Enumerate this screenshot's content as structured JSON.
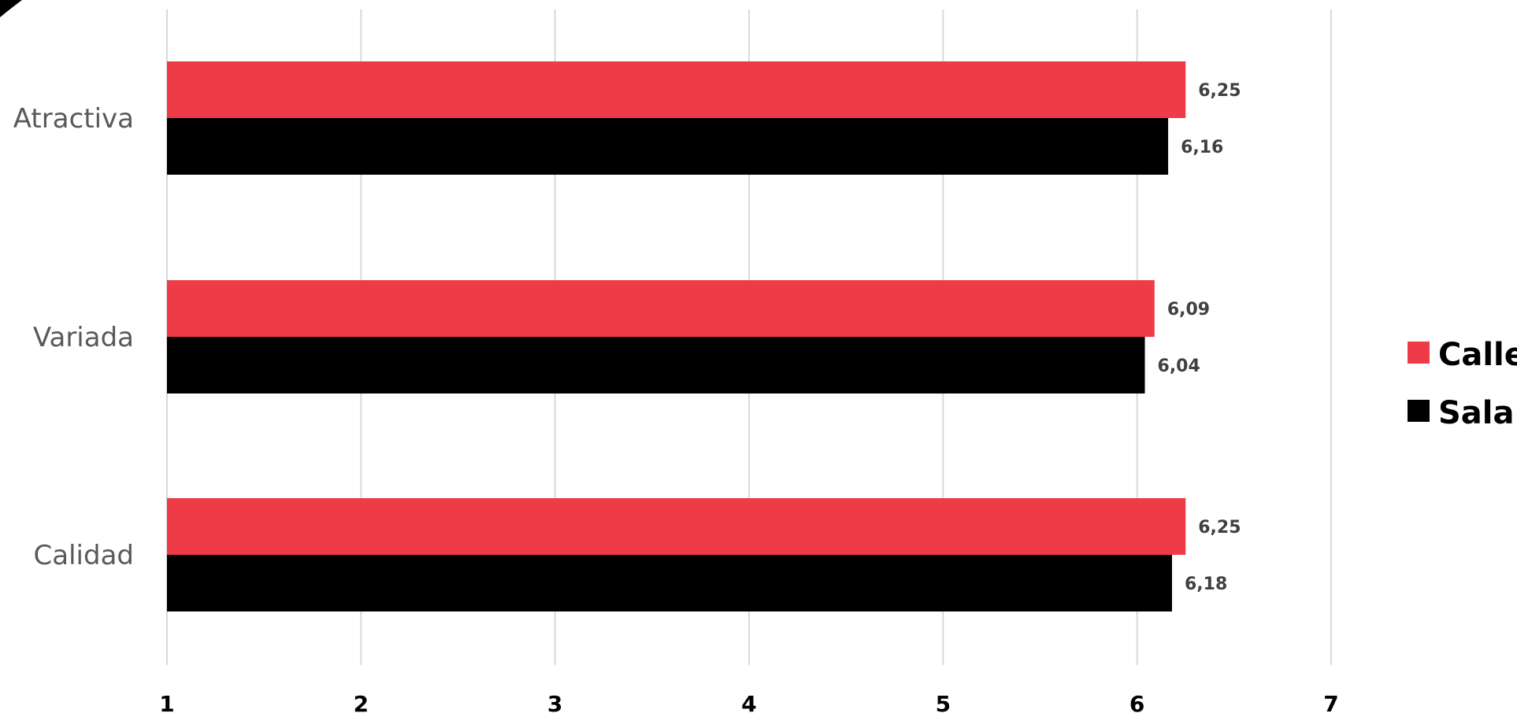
{
  "chart_data": {
    "type": "bar",
    "orientation": "horizontal",
    "categories": [
      "Atractiva",
      "Variada",
      "Calidad"
    ],
    "series": [
      {
        "name": "Calle",
        "values": [
          6.25,
          6.09,
          6.25
        ],
        "labels": [
          "6,25",
          "6,09",
          "6,25"
        ],
        "color": "#ef3b47"
      },
      {
        "name": "Sala",
        "values": [
          6.16,
          6.04,
          6.18
        ],
        "labels": [
          "6,16",
          "6,04",
          "6,18"
        ],
        "color": "#000000"
      }
    ],
    "xlim": [
      1,
      7
    ],
    "xticks": [
      "1",
      "2",
      "3",
      "4",
      "5",
      "6",
      "7"
    ],
    "title": "",
    "xlabel": "",
    "ylabel": "",
    "grid": "vertical",
    "legend_position": "right"
  }
}
